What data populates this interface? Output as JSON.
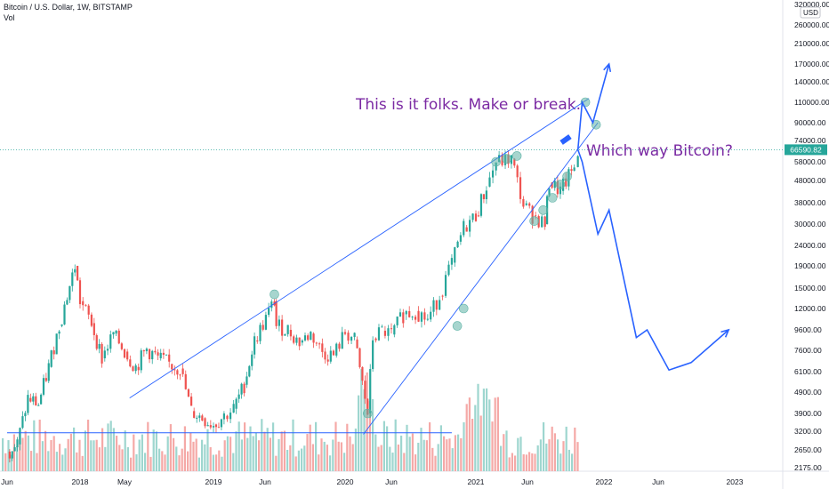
{
  "header": {
    "symbol": "Bitcoin / U.S. Dollar, 1W, BITSTAMP",
    "indicator": "Vol"
  },
  "chart_data": {
    "type": "candlestick",
    "title": "Bitcoin / U.S. Dollar, 1W, BITSTAMP",
    "y_scale": "log",
    "currency": "USD",
    "y_tick_labels": [
      "320000.00",
      "260000.00",
      "210000.00",
      "170000.00",
      "140000.00",
      "110000.00",
      "90000.00",
      "74000.00",
      "58000.00",
      "48000.00",
      "38000.00",
      "30000.00",
      "24000.00",
      "19000.00",
      "15000.00",
      "12000.00",
      "9600.00",
      "7600.00",
      "6100.00",
      "4900.00",
      "3900.00",
      "3200.00",
      "2650.00",
      "2175.00"
    ],
    "y_tick_values": [
      320000,
      260000,
      210000,
      170000,
      140000,
      110000,
      90000,
      74000,
      58000,
      48000,
      38000,
      30000,
      24000,
      19000,
      15000,
      12000,
      9600,
      7600,
      6100,
      4900,
      3900,
      3200,
      2650,
      2175
    ],
    "x_tick_labels": [
      "Jun",
      "2018",
      "May",
      "2019",
      "Jun",
      "2020",
      "Jun",
      "2021",
      "Jun",
      "2022",
      "Jun",
      "2023"
    ],
    "x_tick_dates": [
      "2017-06-01",
      "2018-01-01",
      "2018-05-01",
      "2019-01-01",
      "2019-06-01",
      "2020-01-01",
      "2020-06-01",
      "2021-01-01",
      "2021-06-01",
      "2022-01-01",
      "2022-06-01",
      "2023-01-01"
    ],
    "last_price": "66590.82",
    "last_price_value": 66590.82,
    "ohlc_closes": [
      [
        "2017-06-01",
        2600
      ],
      [
        "2017-07-01",
        2800
      ],
      [
        "2017-08-01",
        4600
      ],
      [
        "2017-09-01",
        4300
      ],
      [
        "2017-10-01",
        6400
      ],
      [
        "2017-11-01",
        10000
      ],
      [
        "2017-12-17",
        19000
      ],
      [
        "2018-01-01",
        13000
      ],
      [
        "2018-02-01",
        10300
      ],
      [
        "2018-03-01",
        7000
      ],
      [
        "2018-04-01",
        9200
      ],
      [
        "2018-05-01",
        7500
      ],
      [
        "2018-06-01",
        6400
      ],
      [
        "2018-07-01",
        7700
      ],
      [
        "2018-08-01",
        7000
      ],
      [
        "2018-09-01",
        6600
      ],
      [
        "2018-10-01",
        6300
      ],
      [
        "2018-11-01",
        4000
      ],
      [
        "2018-12-01",
        3700
      ],
      [
        "2019-01-01",
        3450
      ],
      [
        "2019-02-01",
        3800
      ],
      [
        "2019-03-01",
        4100
      ],
      [
        "2019-04-01",
        5300
      ],
      [
        "2019-05-01",
        8500
      ],
      [
        "2019-06-26",
        13000
      ],
      [
        "2019-07-01",
        10000
      ],
      [
        "2019-08-01",
        9600
      ],
      [
        "2019-09-01",
        8300
      ],
      [
        "2019-10-01",
        9200
      ],
      [
        "2019-11-01",
        7500
      ],
      [
        "2019-12-01",
        7200
      ],
      [
        "2020-01-01",
        9300
      ],
      [
        "2020-02-01",
        8600
      ],
      [
        "2020-03-15",
        3900
      ],
      [
        "2020-04-01",
        8700
      ],
      [
        "2020-05-01",
        9500
      ],
      [
        "2020-06-01",
        9100
      ],
      [
        "2020-07-01",
        11300
      ],
      [
        "2020-08-01",
        11700
      ],
      [
        "2020-09-01",
        10700
      ],
      [
        "2020-10-01",
        13800
      ],
      [
        "2020-11-01",
        19700
      ],
      [
        "2020-12-01",
        29000
      ],
      [
        "2021-01-01",
        33000
      ],
      [
        "2021-02-01",
        45000
      ],
      [
        "2021-03-01",
        58000
      ],
      [
        "2021-04-15",
        60000
      ],
      [
        "2021-05-20",
        37000
      ],
      [
        "2021-06-15",
        33000
      ],
      [
        "2021-07-20",
        30000
      ],
      [
        "2021-08-01",
        47000
      ],
      [
        "2021-09-01",
        43000
      ],
      [
        "2021-10-10",
        55000
      ],
      [
        "2021-10-20",
        66590.82
      ]
    ],
    "forecast_path": [
      [
        "2021-10-20",
        66590.82
      ],
      [
        "2021-11-01",
        110000
      ],
      [
        "2021-12-01",
        90000
      ],
      [
        "2022-01-15",
        170000
      ]
    ],
    "bearish_path": [
      [
        "2021-10-20",
        66590.82
      ],
      [
        "2021-11-01",
        58000
      ],
      [
        "2021-12-15",
        27000
      ],
      [
        "2022-01-15",
        35000
      ],
      [
        "2022-04-01",
        8800
      ],
      [
        "2022-05-01",
        9600
      ],
      [
        "2022-07-01",
        6200
      ],
      [
        "2022-09-01",
        6700
      ],
      [
        "2022-12-15",
        9600
      ]
    ],
    "trendlines": [
      {
        "name": "upper",
        "from": [
          "2018-05-15",
          4600
        ],
        "to": [
          "2021-11-20",
          115000
        ]
      },
      {
        "name": "lower",
        "from": [
          "2020-03-01",
          3100
        ],
        "to": [
          "2021-12-15",
          90000
        ]
      },
      {
        "name": "base",
        "from": [
          "2017-06-01",
          3150
        ],
        "to": [
          "2020-11-01",
          3150
        ]
      }
    ],
    "annotations": [
      {
        "text": "This is it folks. Make or break."
      },
      {
        "text": "Which way Bitcoin?"
      }
    ],
    "touch_points": [
      [
        "2019-06-26",
        14000
      ],
      [
        "2020-03-15",
        3900
      ],
      [
        "2020-11-15",
        10000
      ],
      [
        "2020-12-01",
        12000
      ],
      [
        "2021-03-01",
        58000
      ],
      [
        "2021-04-01",
        60000
      ],
      [
        "2021-05-01",
        62000
      ],
      [
        "2021-06-20",
        31000
      ],
      [
        "2021-07-15",
        35000
      ],
      [
        "2021-08-10",
        40000
      ],
      [
        "2021-09-01",
        46000
      ],
      [
        "2021-09-20",
        50000
      ],
      [
        "2021-11-10",
        110000
      ],
      [
        "2021-12-10",
        88000
      ]
    ],
    "colors": {
      "up": "#26a69a",
      "down": "#ef5350",
      "line": "#2962ff",
      "annotation": "#7b2aa3",
      "touch": "#5fb3a6"
    }
  }
}
